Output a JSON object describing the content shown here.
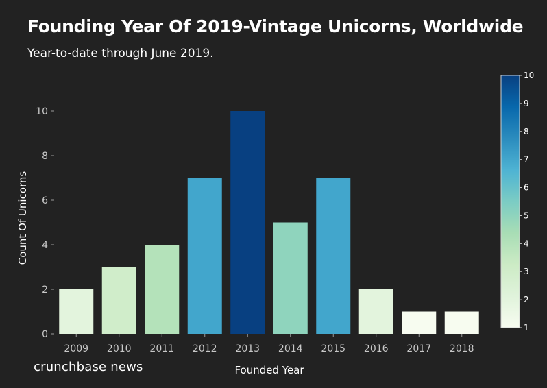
{
  "chart_data": {
    "type": "bar",
    "title": "Founding Year Of 2019-Vintage Unicorns, Worldwide",
    "subtitle": "Year-to-date through June 2019.",
    "xlabel": "Founded Year",
    "ylabel": "Count Of Unicorns",
    "categories": [
      "2009",
      "2010",
      "2011",
      "2012",
      "2013",
      "2014",
      "2015",
      "2016",
      "2017",
      "2018"
    ],
    "values": [
      2,
      3,
      4,
      7,
      10,
      5,
      7,
      2,
      1,
      1
    ],
    "ylim": [
      0,
      11.6
    ],
    "yticks": [
      0,
      2,
      4,
      6,
      8,
      10
    ],
    "grid": false,
    "legend": "right",
    "colorscale": {
      "name": "GnBu",
      "range": [
        1,
        10
      ],
      "ticks": [
        1,
        2,
        3,
        4,
        5,
        6,
        7,
        8,
        9,
        10
      ],
      "stops": [
        "#f7fcf0",
        "#e0f3db",
        "#ccebc5",
        "#a8ddb5",
        "#7bccc4",
        "#4eb3d3",
        "#2b8cbe",
        "#0868ac",
        "#084081"
      ]
    }
  },
  "branding": "crunchbase news"
}
